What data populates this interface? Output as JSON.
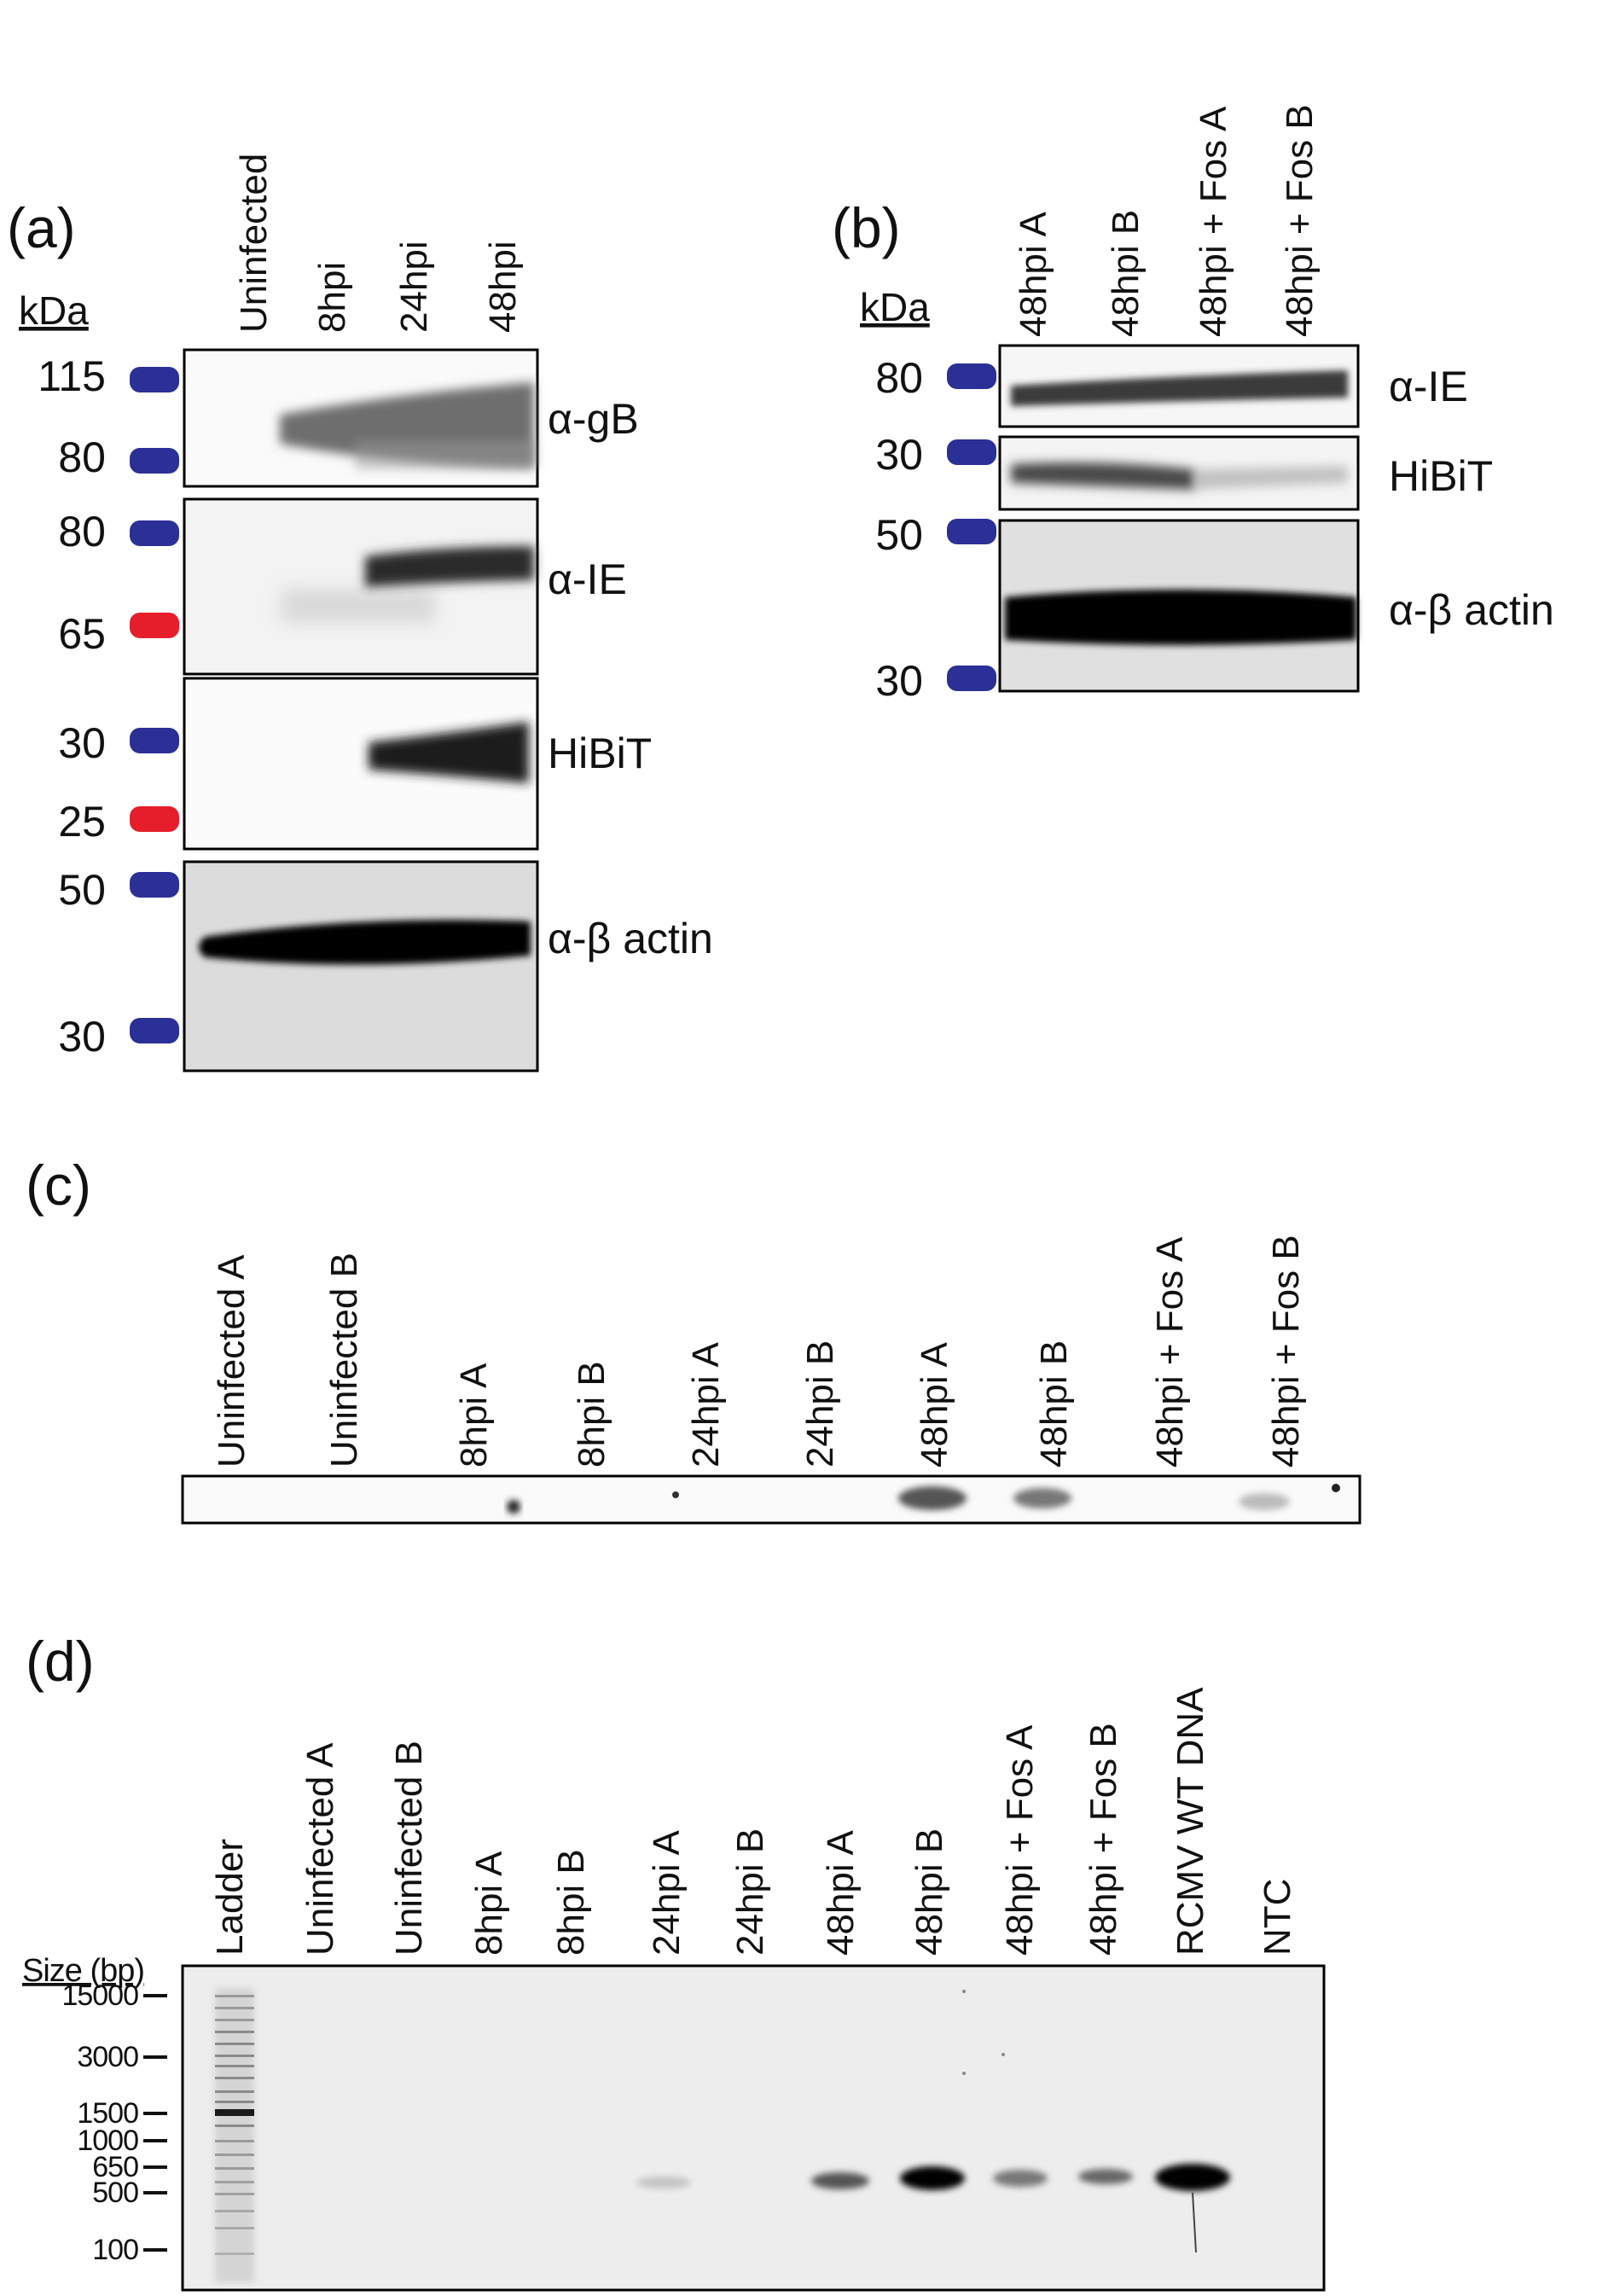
{
  "panel_a": {
    "letter": "(a)",
    "unit_label": "kDa",
    "lanes": [
      "Uninfected",
      "8hpi",
      "24hpi",
      "48hpi"
    ],
    "blots": [
      {
        "label": "α-gB",
        "markers": [
          {
            "value": "115",
            "color": "#2b3096"
          },
          {
            "value": "80",
            "color": "#2b3096"
          }
        ]
      },
      {
        "label": "α-IE",
        "markers": [
          {
            "value": "80",
            "color": "#2b3096"
          },
          {
            "value": "65",
            "color": "#e61e2c"
          }
        ]
      },
      {
        "label": "HiBiT",
        "markers": [
          {
            "value": "30",
            "color": "#2b3096"
          },
          {
            "value": "25",
            "color": "#e61e2c"
          }
        ]
      },
      {
        "label": "α-β actin",
        "markers": [
          {
            "value": "50",
            "color": "#2b3096"
          },
          {
            "value": "30",
            "color": "#2b3096"
          }
        ]
      }
    ]
  },
  "panel_b": {
    "letter": "(b)",
    "unit_label": "kDa",
    "lanes": [
      "48hpi A",
      "48hpi B",
      "48hpi + Fos A",
      "48hpi + Fos B"
    ],
    "blots": [
      {
        "label": "α-IE",
        "markers": [
          {
            "value": "80",
            "color": "#2b3096"
          }
        ]
      },
      {
        "label": "HiBiT",
        "markers": [
          {
            "value": "30",
            "color": "#2b3096"
          }
        ]
      },
      {
        "label": "α-β actin",
        "markers": [
          {
            "value": "50",
            "color": "#2b3096"
          },
          {
            "value": "30",
            "color": "#2b3096"
          }
        ]
      }
    ]
  },
  "panel_c": {
    "letter": "(c)",
    "lanes": [
      "Uninfected A",
      "Uninfected B",
      "8hpi A",
      "8hpi B",
      "24hpi A",
      "24hpi B",
      "48hpi A",
      "48hpi B",
      "48hpi + Fos A",
      "48hpi + Fos B"
    ]
  },
  "panel_d": {
    "letter": "(d)",
    "size_label": "Size (bp)",
    "lanes": [
      "Ladder",
      "Uninfected A",
      "Uninfected B",
      "8hpi A",
      "8hpi B",
      "24hpi A",
      "24hpi B",
      "48hpi A",
      "48hpi B",
      "48hpi + Fos A",
      "48hpi + Fos B",
      "RCMV WT DNA",
      "NTC"
    ],
    "ladder_sizes": [
      "15000",
      "3000",
      "1500",
      "1000",
      "650",
      "500",
      "100"
    ]
  },
  "colors": {
    "marker_blue": "#2b3096",
    "marker_red": "#e61e2c",
    "band": "#000000"
  }
}
